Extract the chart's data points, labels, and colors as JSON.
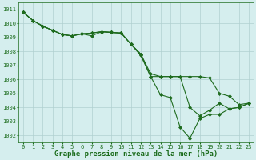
{
  "lines": [
    {
      "x": [
        0,
        1,
        2,
        3,
        4,
        5,
        6,
        7,
        8,
        9,
        10,
        11,
        12,
        13,
        14,
        15,
        16,
        17,
        18,
        19,
        20,
        21,
        22,
        23
      ],
      "y": [
        1010.8,
        1010.2,
        1009.8,
        1009.5,
        1009.2,
        1009.1,
        1009.25,
        1009.3,
        1009.4,
        1009.35,
        1009.3,
        1008.5,
        1007.8,
        1006.2,
        1006.2,
        1006.2,
        1006.2,
        1006.2,
        1006.2,
        1006.1,
        1005.0,
        1004.8,
        1004.2,
        1004.3
      ]
    },
    {
      "x": [
        0,
        1,
        2,
        3,
        4,
        5,
        6,
        7,
        8,
        9,
        10,
        11,
        12,
        13,
        14,
        15,
        16,
        17,
        18,
        19,
        20,
        21,
        22,
        23
      ],
      "y": [
        1010.8,
        1010.2,
        1009.8,
        1009.5,
        1009.2,
        1009.1,
        1009.25,
        1009.1,
        1009.4,
        1009.35,
        1009.3,
        1008.5,
        1007.7,
        1006.2,
        1004.9,
        1004.7,
        1002.6,
        1001.8,
        1003.2,
        1003.5,
        1003.5,
        1003.9,
        1004.0,
        1004.3
      ]
    },
    {
      "x": [
        0,
        1,
        2,
        3,
        4,
        5,
        6,
        7,
        8,
        9,
        10,
        11,
        12,
        13,
        14,
        15,
        16,
        17,
        18,
        19,
        20,
        21,
        22,
        23
      ],
      "y": [
        1010.8,
        1010.2,
        1009.8,
        1009.5,
        1009.2,
        1009.1,
        1009.25,
        1009.3,
        1009.4,
        1009.35,
        1009.3,
        1008.5,
        1007.8,
        1006.4,
        1006.2,
        1006.2,
        1006.2,
        1004.0,
        1003.4,
        1003.8,
        1004.3,
        1003.9,
        1004.0,
        1004.3
      ]
    }
  ],
  "line_color": "#1e6b1e",
  "marker": "D",
  "markersize": 2.0,
  "linewidth": 0.8,
  "bg_color": "#d5eeee",
  "grid_color": "#b0d0d0",
  "text_color": "#1a6b1a",
  "xlabel": "Graphe pression niveau de la mer (hPa)",
  "xlim": [
    -0.5,
    23.5
  ],
  "ylim": [
    1001.5,
    1011.5
  ],
  "yticks": [
    1002,
    1003,
    1004,
    1005,
    1006,
    1007,
    1008,
    1009,
    1010,
    1011
  ],
  "xticks": [
    0,
    1,
    2,
    3,
    4,
    5,
    6,
    7,
    8,
    9,
    10,
    11,
    12,
    13,
    14,
    15,
    16,
    17,
    18,
    19,
    20,
    21,
    22,
    23
  ],
  "tick_fontsize": 5.0,
  "label_fontsize": 6.5
}
